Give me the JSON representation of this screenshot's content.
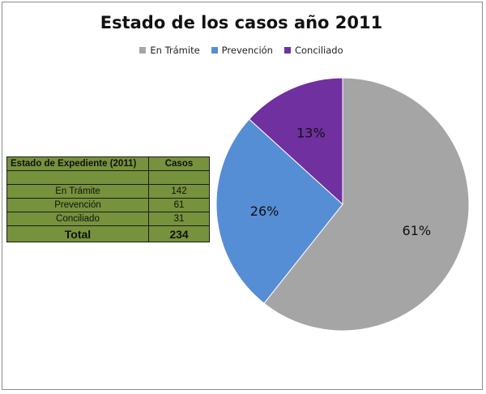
{
  "chart_data": {
    "type": "pie",
    "title": "Estado de los casos año 2011",
    "legend_position": "top",
    "slices": [
      {
        "name": "En Trámite",
        "value": 142,
        "label": "61%",
        "color": "#a5a5a5"
      },
      {
        "name": "Prevención",
        "value": 61,
        "label": "26%",
        "color": "#558ed5"
      },
      {
        "name": "Conciliado",
        "value": 31,
        "label": "13%",
        "color": "#7030a0"
      }
    ]
  },
  "table": {
    "headers": [
      "Estado de Expediente (2011)",
      "Casos"
    ],
    "rows": [
      {
        "label": "En Trámite",
        "value": "142"
      },
      {
        "label": "Prevención",
        "value": "61"
      },
      {
        "label": "Conciliado",
        "value": "31"
      }
    ],
    "total_label": "Total",
    "total_value": "234"
  }
}
